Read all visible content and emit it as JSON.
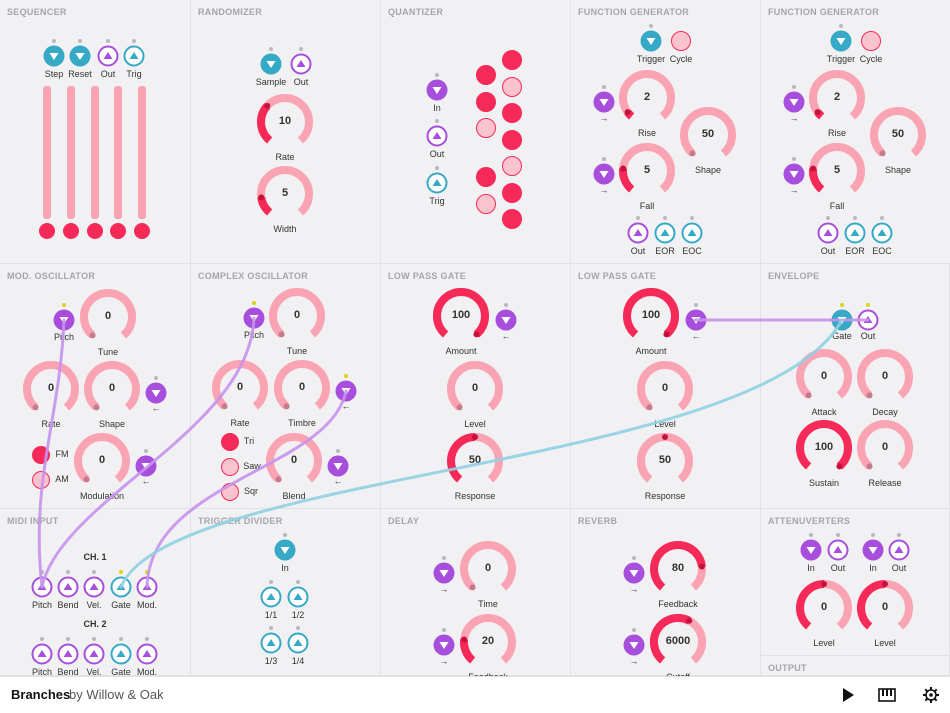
{
  "app": {
    "name": "Branches",
    "byline": "by Willow & Oak"
  },
  "colors": {
    "pink": "#f9a3b3",
    "pinkLight": "#fbc3cd",
    "red": "#f52a58",
    "purple": "#a74fdc",
    "teal": "#35a9c6",
    "cable_purple": "#c792ec",
    "cable_teal": "#8fd0e3",
    "indicator": "#ddd30f"
  },
  "modules": {
    "sequencer": {
      "title": "SEQUENCER",
      "ports": [
        "Step",
        "Reset",
        "Out",
        "Trig"
      ]
    },
    "randomizer": {
      "title": "RANDOMIZER",
      "ports": [
        "Sample",
        "Out"
      ],
      "knobs": [
        {
          "value": "10",
          "label": "Rate"
        },
        {
          "value": "5",
          "label": "Width"
        }
      ]
    },
    "quantizer": {
      "title": "QUANTIZER",
      "ports": [
        "In",
        "Out",
        "Trig"
      ]
    },
    "fg1": {
      "title": "FUNCTION GENERATOR",
      "top": [
        "Trigger",
        "Cycle"
      ],
      "knobs": [
        {
          "value": "2",
          "label": "Rise"
        },
        {
          "value": "50",
          "label": "Shape"
        },
        {
          "value": "5",
          "label": "Fall"
        }
      ],
      "outs": [
        "Out",
        "EOR",
        "EOC"
      ],
      "arrow": "→"
    },
    "fg2": {
      "title": "FUNCTION GENERATOR",
      "top": [
        "Trigger",
        "Cycle"
      ],
      "knobs": [
        {
          "value": "2",
          "label": "Rise"
        },
        {
          "value": "50",
          "label": "Shape"
        },
        {
          "value": "5",
          "label": "Fall"
        }
      ],
      "outs": [
        "Out",
        "EOR",
        "EOC"
      ],
      "arrow": "→"
    },
    "modosc": {
      "title": "MOD. OSCILLATOR",
      "pitch": "Pitch",
      "knobs": [
        {
          "value": "0",
          "label": "Tune"
        },
        {
          "value": "0",
          "label": "Rate"
        },
        {
          "value": "0",
          "label": "Shape"
        },
        {
          "value": "0",
          "label": "Modulation"
        }
      ],
      "waves": [
        "FM",
        "AM"
      ],
      "arrow": "←"
    },
    "complexosc": {
      "title": "COMPLEX OSCILLATOR",
      "pitch": "Pitch",
      "knobs": [
        {
          "value": "0",
          "label": "Tune"
        },
        {
          "value": "0",
          "label": "Rate"
        },
        {
          "value": "0",
          "label": "Timbre"
        },
        {
          "value": "0",
          "label": "Blend"
        }
      ],
      "waves": [
        "Tri",
        "Saw",
        "Sqr"
      ],
      "arrow": "←"
    },
    "lpg1": {
      "title": "LOW PASS GATE",
      "knobs": [
        {
          "value": "100",
          "label": "Amount"
        },
        {
          "value": "0",
          "label": "Level"
        },
        {
          "value": "50",
          "label": "Response"
        }
      ],
      "arrow": "←"
    },
    "lpg2": {
      "title": "LOW PASS GATE",
      "knobs": [
        {
          "value": "100",
          "label": "Amount"
        },
        {
          "value": "0",
          "label": "Level"
        },
        {
          "value": "50",
          "label": "Response"
        }
      ],
      "arrow": "←"
    },
    "envelope": {
      "title": "ENVELOPE",
      "ports": [
        "Gate",
        "Out"
      ],
      "knobs": [
        {
          "value": "0",
          "label": "Attack"
        },
        {
          "value": "0",
          "label": "Decay"
        },
        {
          "value": "100",
          "label": "Sustain"
        },
        {
          "value": "0",
          "label": "Release"
        }
      ]
    },
    "midi": {
      "title": "MIDI INPUT",
      "ch1": "CH. 1",
      "ch2": "CH. 2",
      "ports": [
        "Pitch",
        "Bend",
        "Vel.",
        "Gate",
        "Mod."
      ]
    },
    "trigdiv": {
      "title": "TRIGGER DIVIDER",
      "in": "In",
      "ports": [
        "1/1",
        "1/2",
        "1/3",
        "1/4"
      ]
    },
    "delay": {
      "title": "DELAY",
      "knobs": [
        {
          "value": "0",
          "label": "Time"
        },
        {
          "value": "20",
          "label": "Feedback"
        }
      ],
      "arrow": "→"
    },
    "reverb": {
      "title": "REVERB",
      "knobs": [
        {
          "value": "80",
          "label": "Feedback"
        },
        {
          "value": "6000",
          "label": "Cutoff"
        }
      ],
      "arrow": "→"
    },
    "attenuverters": {
      "title": "ATTENUVERTERS",
      "ports": [
        "In",
        "Out",
        "In",
        "Out"
      ],
      "knobs": [
        {
          "value": "0",
          "label": "Level"
        },
        {
          "value": "0",
          "label": "Level"
        }
      ]
    },
    "output": {
      "title": "OUTPUT"
    }
  }
}
